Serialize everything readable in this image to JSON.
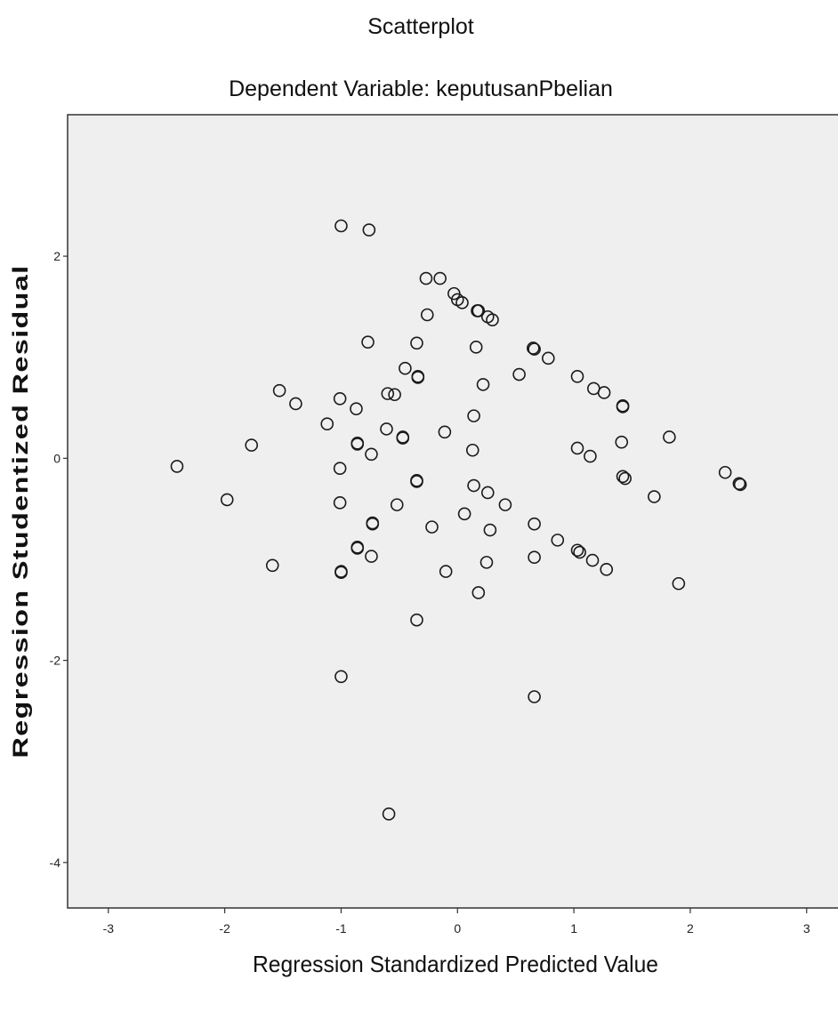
{
  "chart_data": {
    "type": "scatter",
    "title": "Scatterplot",
    "subtitle": "Dependent Variable: keputusanPbelian",
    "xlabel": "Regression Standardized Predicted Value",
    "ylabel": "Regression Studentized Residual",
    "xlim": [
      -3.35,
      3.3
    ],
    "ylim": [
      -4.45,
      3.4
    ],
    "x_ticks": [
      -3,
      -2,
      -1,
      0,
      1,
      2,
      3
    ],
    "x_tick_labels": [
      "-3",
      "-2",
      "-1",
      "0",
      "1",
      "2",
      "3"
    ],
    "y_ticks": [
      2,
      0,
      -2,
      -4
    ],
    "y_tick_labels": [
      "2",
      "0",
      "-2",
      "-4"
    ],
    "grid": false,
    "marker": "open-circle",
    "colors": {
      "plot_background": "#efefef",
      "marker": "#1a1a1a"
    },
    "points": [
      {
        "x": -1.0,
        "y": 2.3
      },
      {
        "x": -0.76,
        "y": 2.26
      },
      {
        "x": -0.27,
        "y": 1.78
      },
      {
        "x": -0.15,
        "y": 1.78
      },
      {
        "x": -0.03,
        "y": 1.63
      },
      {
        "x": 0.0,
        "y": 1.57
      },
      {
        "x": 0.04,
        "y": 1.54
      },
      {
        "x": 0.17,
        "y": 1.46
      },
      {
        "x": 0.18,
        "y": 1.46
      },
      {
        "x": 0.26,
        "y": 1.4
      },
      {
        "x": 0.3,
        "y": 1.37
      },
      {
        "x": -0.26,
        "y": 1.42
      },
      {
        "x": -0.77,
        "y": 1.15
      },
      {
        "x": -0.35,
        "y": 1.14
      },
      {
        "x": 0.16,
        "y": 1.1
      },
      {
        "x": 0.65,
        "y": 1.09
      },
      {
        "x": 0.66,
        "y": 1.08
      },
      {
        "x": 0.78,
        "y": 0.99
      },
      {
        "x": -0.45,
        "y": 0.89
      },
      {
        "x": -0.34,
        "y": 0.81
      },
      {
        "x": -0.34,
        "y": 0.8
      },
      {
        "x": 0.53,
        "y": 0.83
      },
      {
        "x": 1.03,
        "y": 0.81
      },
      {
        "x": 0.22,
        "y": 0.73
      },
      {
        "x": 1.17,
        "y": 0.69
      },
      {
        "x": 1.26,
        "y": 0.65
      },
      {
        "x": -1.53,
        "y": 0.67
      },
      {
        "x": -0.6,
        "y": 0.64
      },
      {
        "x": -0.54,
        "y": 0.63
      },
      {
        "x": -1.01,
        "y": 0.59
      },
      {
        "x": -1.39,
        "y": 0.54
      },
      {
        "x": -0.87,
        "y": 0.49
      },
      {
        "x": 1.42,
        "y": 0.51
      },
      {
        "x": 1.42,
        "y": 0.52
      },
      {
        "x": 0.14,
        "y": 0.42
      },
      {
        "x": -1.12,
        "y": 0.34
      },
      {
        "x": -0.61,
        "y": 0.29
      },
      {
        "x": -0.11,
        "y": 0.26
      },
      {
        "x": -0.47,
        "y": 0.2
      },
      {
        "x": -0.47,
        "y": 0.21
      },
      {
        "x": 1.82,
        "y": 0.21
      },
      {
        "x": -1.77,
        "y": 0.13
      },
      {
        "x": -0.86,
        "y": 0.15
      },
      {
        "x": -0.86,
        "y": 0.14
      },
      {
        "x": 1.41,
        "y": 0.16
      },
      {
        "x": 1.03,
        "y": 0.1
      },
      {
        "x": 0.13,
        "y": 0.08
      },
      {
        "x": -0.74,
        "y": 0.04
      },
      {
        "x": 1.14,
        "y": 0.02
      },
      {
        "x": -2.41,
        "y": -0.08
      },
      {
        "x": -1.01,
        "y": -0.1
      },
      {
        "x": 1.42,
        "y": -0.18
      },
      {
        "x": 1.44,
        "y": -0.2
      },
      {
        "x": 2.3,
        "y": -0.14
      },
      {
        "x": 2.42,
        "y": -0.25
      },
      {
        "x": 2.43,
        "y": -0.26
      },
      {
        "x": -0.35,
        "y": -0.22
      },
      {
        "x": -0.35,
        "y": -0.23
      },
      {
        "x": 0.14,
        "y": -0.27
      },
      {
        "x": 0.26,
        "y": -0.34
      },
      {
        "x": 1.69,
        "y": -0.38
      },
      {
        "x": -1.98,
        "y": -0.41
      },
      {
        "x": -1.01,
        "y": -0.44
      },
      {
        "x": -0.52,
        "y": -0.46
      },
      {
        "x": 0.41,
        "y": -0.46
      },
      {
        "x": 0.06,
        "y": -0.55
      },
      {
        "x": -0.73,
        "y": -0.64
      },
      {
        "x": -0.73,
        "y": -0.65
      },
      {
        "x": 0.66,
        "y": -0.65
      },
      {
        "x": -0.22,
        "y": -0.68
      },
      {
        "x": 0.28,
        "y": -0.71
      },
      {
        "x": 0.86,
        "y": -0.81
      },
      {
        "x": -0.86,
        "y": -0.88
      },
      {
        "x": -0.86,
        "y": -0.89
      },
      {
        "x": 1.03,
        "y": -0.91
      },
      {
        "x": 1.05,
        "y": -0.93
      },
      {
        "x": -0.74,
        "y": -0.97
      },
      {
        "x": 0.66,
        "y": -0.98
      },
      {
        "x": 1.16,
        "y": -1.01
      },
      {
        "x": 0.25,
        "y": -1.03
      },
      {
        "x": -1.59,
        "y": -1.06
      },
      {
        "x": 1.28,
        "y": -1.1
      },
      {
        "x": -1.0,
        "y": -1.12
      },
      {
        "x": -1.0,
        "y": -1.13
      },
      {
        "x": -0.1,
        "y": -1.12
      },
      {
        "x": 1.9,
        "y": -1.24
      },
      {
        "x": 0.18,
        "y": -1.33
      },
      {
        "x": -0.35,
        "y": -1.6
      },
      {
        "x": -1.0,
        "y": -2.16
      },
      {
        "x": 0.66,
        "y": -2.36
      },
      {
        "x": -0.59,
        "y": -3.52
      }
    ]
  }
}
